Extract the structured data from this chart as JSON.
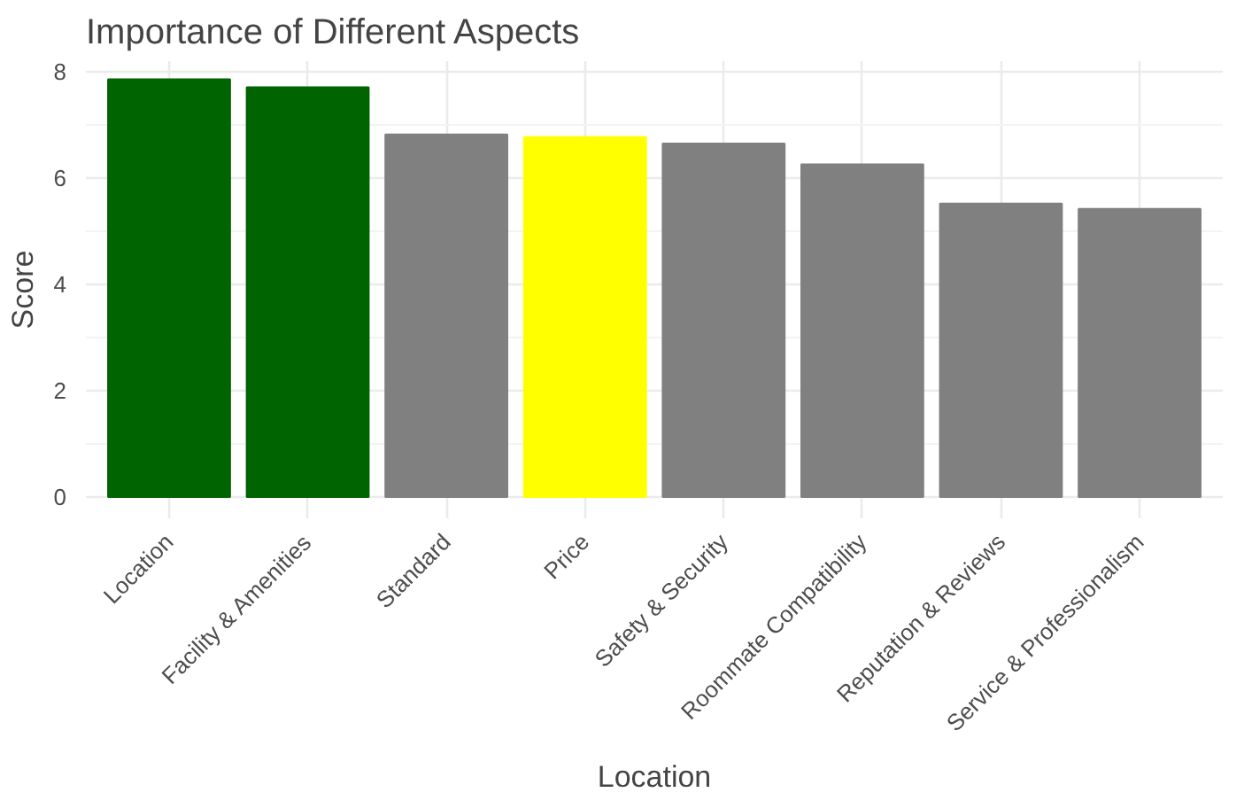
{
  "chart_data": {
    "type": "bar",
    "title": "Importance of Different Aspects",
    "xlabel": "Location",
    "ylabel": "Score",
    "categories": [
      "Location",
      "Facility & Amenities",
      "Standard",
      "Price",
      "Safety & Security",
      "Roommate Compatibility",
      "Reputation & Reviews",
      "Service & Professionalism"
    ],
    "values": [
      7.86,
      7.71,
      6.82,
      6.77,
      6.65,
      6.26,
      5.52,
      5.42
    ],
    "colors": [
      "#006400",
      "#006400",
      "#808080",
      "#ffff00",
      "#808080",
      "#808080",
      "#808080",
      "#808080"
    ],
    "ylim": [
      -0.4,
      8.2
    ],
    "yticks": [
      0,
      2,
      4,
      6,
      8
    ],
    "grid": true
  }
}
